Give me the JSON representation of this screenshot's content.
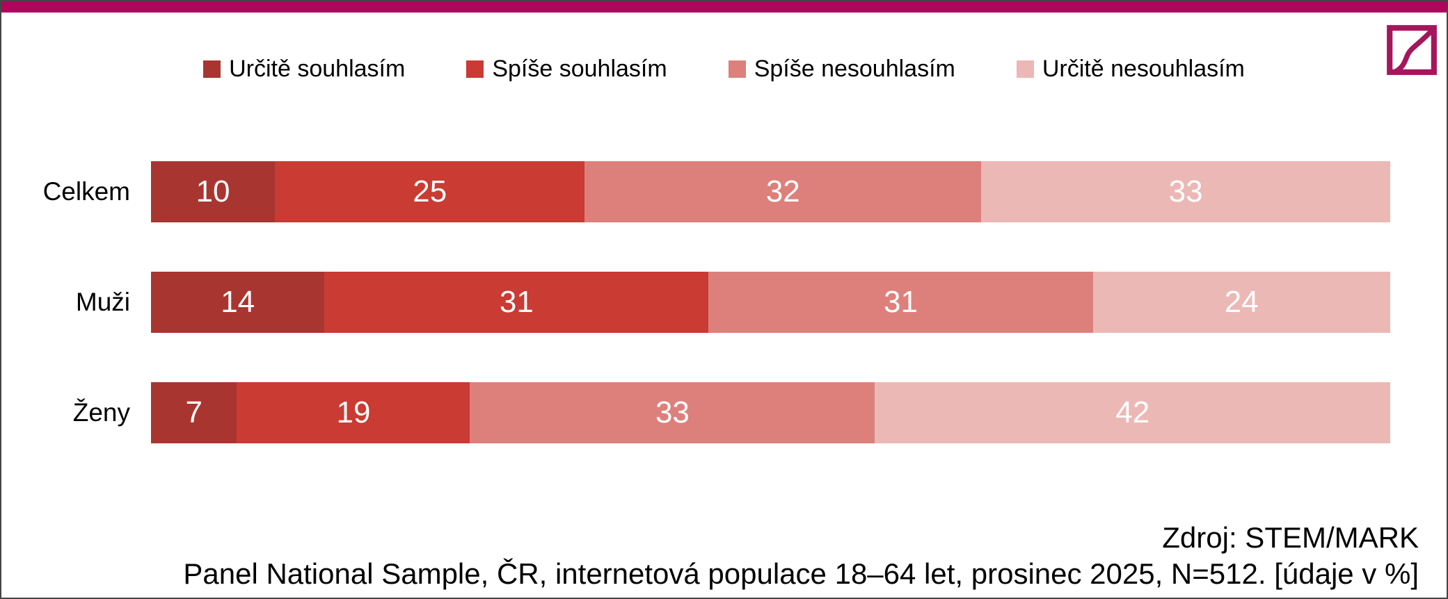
{
  "accent": {
    "top_bar_color": "#B0055C",
    "logo_color": "#A4175C"
  },
  "legend": [
    {
      "label": "Určitě souhlasím",
      "color": "#A93531"
    },
    {
      "label": "Spíše souhlasím",
      "color": "#C93B33"
    },
    {
      "label": "Spíše nesouhlasím",
      "color": "#DD807B"
    },
    {
      "label": "Určitě nesouhlasím",
      "color": "#ECB8B5"
    }
  ],
  "chart_data": {
    "type": "bar",
    "orientation": "horizontal",
    "stacked": true,
    "unit": "%",
    "xlim": [
      0,
      100
    ],
    "categories": [
      "Celkem",
      "Muži",
      "Ženy"
    ],
    "series": [
      {
        "name": "Určitě souhlasím",
        "color": "#A93531",
        "values": [
          10,
          14,
          7
        ]
      },
      {
        "name": "Spíše souhlasím",
        "color": "#C93B33",
        "values": [
          25,
          31,
          19
        ]
      },
      {
        "name": "Spíše nesouhlasím",
        "color": "#DD807B",
        "values": [
          32,
          31,
          33
        ]
      },
      {
        "name": "Určitě nesouhlasím",
        "color": "#ECB8B5",
        "values": [
          33,
          24,
          42
        ]
      }
    ],
    "value_labels": true,
    "legend_position": "top",
    "grid": false
  },
  "footer": {
    "source": "Zdroj: STEM/MARK",
    "note": "Panel National Sample, ČR, internetová populace 18–64 let, prosinec 2025, N=512. [údaje v %]"
  }
}
